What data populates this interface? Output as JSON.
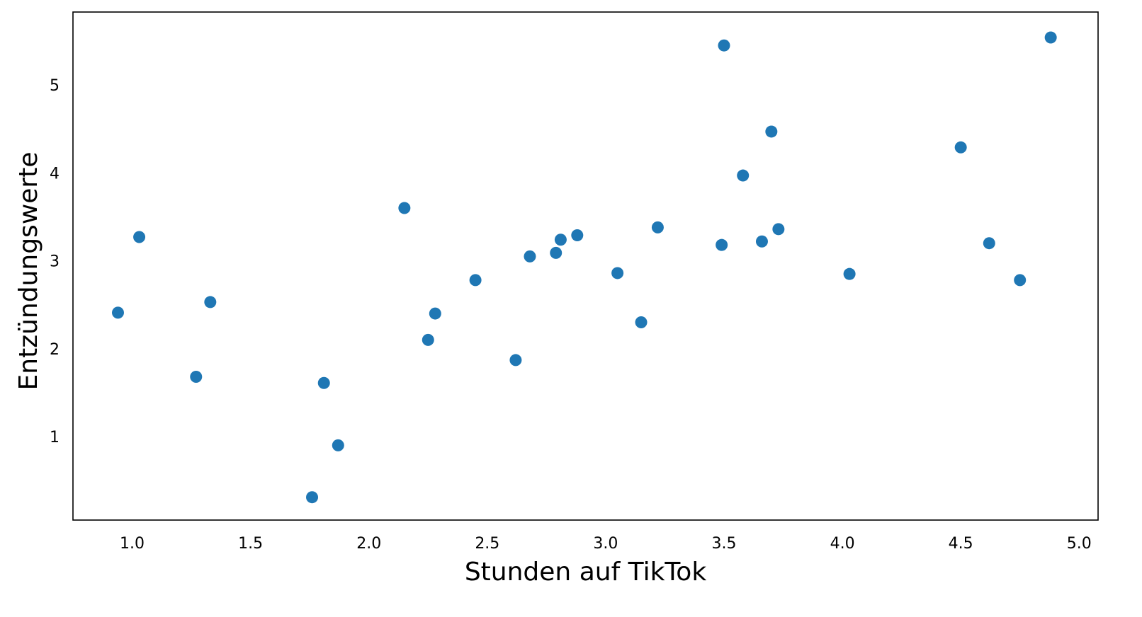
{
  "chart_data": {
    "type": "scatter",
    "title": "",
    "xlabel": "Stunden auf TikTok",
    "ylabel": "Entzündungswerte",
    "xlim": [
      0.75,
      5.08
    ],
    "ylim": [
      0.05,
      5.83
    ],
    "x_ticks": [
      1.0,
      1.5,
      2.0,
      2.5,
      3.0,
      3.5,
      4.0,
      4.5,
      5.0
    ],
    "x_tick_labels": [
      "1.0",
      "1.5",
      "2.0",
      "2.5",
      "3.0",
      "3.5",
      "4.0",
      "4.5",
      "5.0"
    ],
    "y_ticks": [
      1,
      2,
      3,
      4,
      5
    ],
    "y_tick_labels": [
      "1",
      "2",
      "3",
      "4",
      "5"
    ],
    "grid": false,
    "legend": "none",
    "series": [
      {
        "color": "#1f77b4",
        "points": [
          {
            "x": 0.94,
            "y": 2.41
          },
          {
            "x": 1.03,
            "y": 3.27
          },
          {
            "x": 1.27,
            "y": 1.68
          },
          {
            "x": 1.33,
            "y": 2.53
          },
          {
            "x": 1.76,
            "y": 0.31
          },
          {
            "x": 1.81,
            "y": 1.61
          },
          {
            "x": 1.87,
            "y": 0.9
          },
          {
            "x": 2.15,
            "y": 3.6
          },
          {
            "x": 2.25,
            "y": 2.1
          },
          {
            "x": 2.28,
            "y": 2.4
          },
          {
            "x": 2.45,
            "y": 2.78
          },
          {
            "x": 2.62,
            "y": 1.87
          },
          {
            "x": 2.68,
            "y": 3.05
          },
          {
            "x": 2.79,
            "y": 3.09
          },
          {
            "x": 2.81,
            "y": 3.24
          },
          {
            "x": 2.88,
            "y": 3.29
          },
          {
            "x": 3.05,
            "y": 2.86
          },
          {
            "x": 3.15,
            "y": 2.3
          },
          {
            "x": 3.22,
            "y": 3.38
          },
          {
            "x": 3.49,
            "y": 3.18
          },
          {
            "x": 3.5,
            "y": 5.45
          },
          {
            "x": 3.58,
            "y": 3.97
          },
          {
            "x": 3.66,
            "y": 3.22
          },
          {
            "x": 3.7,
            "y": 4.47
          },
          {
            "x": 3.73,
            "y": 3.36
          },
          {
            "x": 4.03,
            "y": 2.85
          },
          {
            "x": 4.5,
            "y": 4.29
          },
          {
            "x": 4.62,
            "y": 3.2
          },
          {
            "x": 4.75,
            "y": 2.78
          },
          {
            "x": 4.88,
            "y": 5.54
          }
        ]
      }
    ]
  }
}
